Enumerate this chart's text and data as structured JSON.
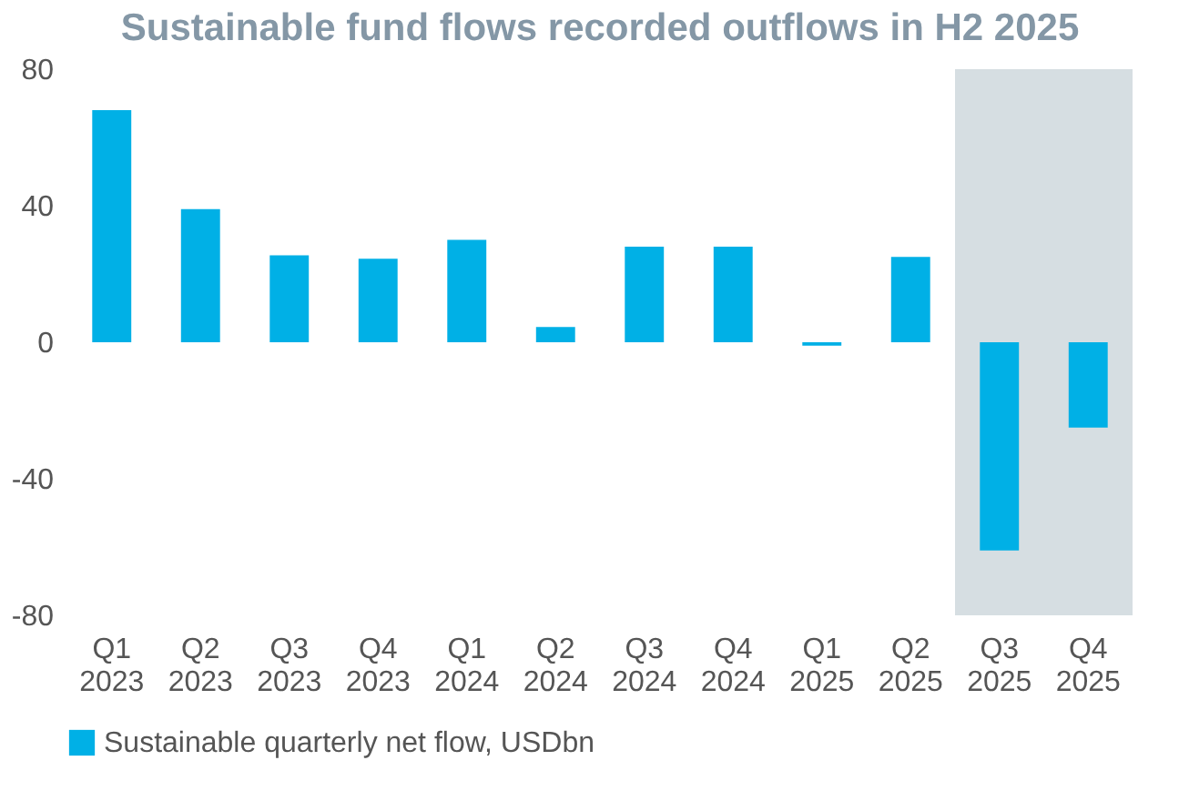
{
  "chart_data": {
    "type": "bar",
    "title": "Sustainable fund flows recorded outflows in H2 2025",
    "categories": [
      "Q1 2023",
      "Q2 2023",
      "Q3 2023",
      "Q4 2023",
      "Q1 2024",
      "Q2 2024",
      "Q3 2024",
      "Q4 2024",
      "Q1 2025",
      "Q2 2025",
      "Q3 2025",
      "Q4 2025"
    ],
    "series": [
      {
        "name": "Sustainable quarterly net flow, USDbn",
        "color": "#00b0e6",
        "values": [
          68,
          39,
          25.5,
          24.5,
          30,
          4.5,
          28,
          28,
          -1,
          25,
          -61,
          -25
        ]
      }
    ],
    "ylim": [
      -80,
      80
    ],
    "yticks": [
      -80,
      -40,
      0,
      40,
      80
    ],
    "legend": "bottom",
    "bands": [
      {
        "axis": "x",
        "from": "Q3 2025",
        "to": "Q4 2025",
        "color": "#d6dee2"
      }
    ]
  }
}
